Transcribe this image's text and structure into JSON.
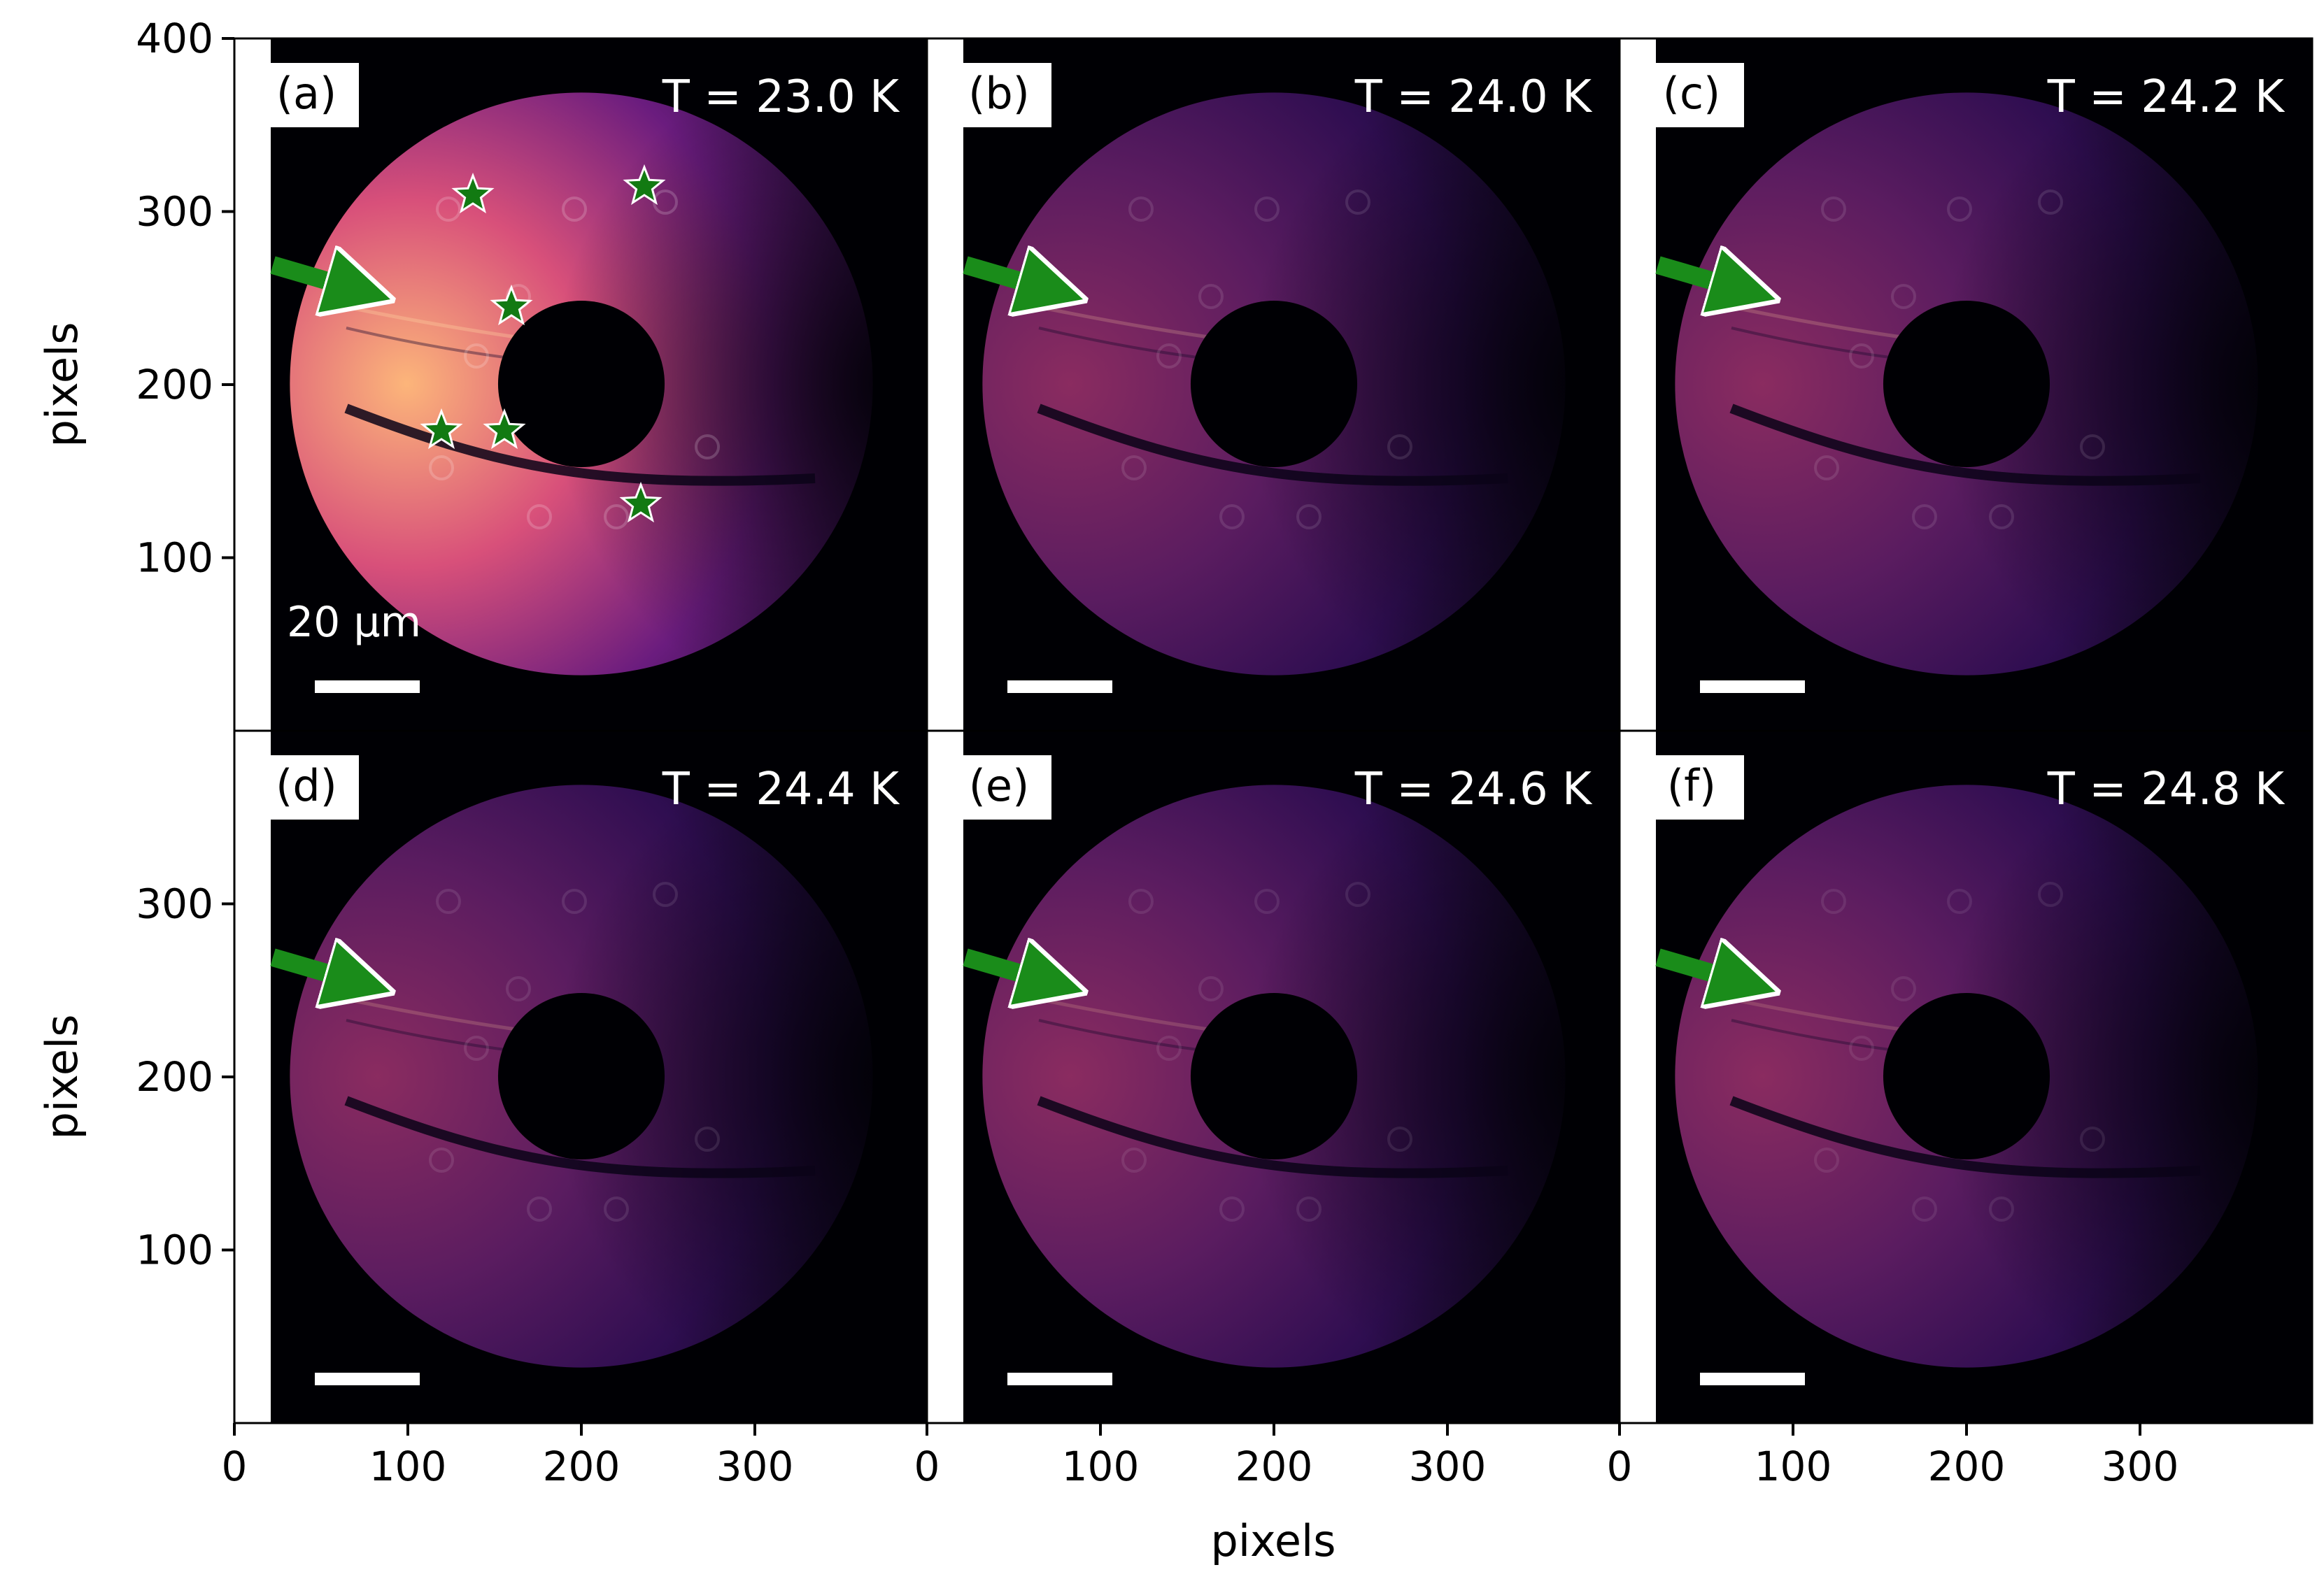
{
  "figure": {
    "axes": {
      "y_label": "pixels",
      "x_label": "pixels",
      "x_ticks": [
        "0",
        "100",
        "200",
        "300"
      ],
      "y_ticks_top": [
        "100",
        "200",
        "300",
        "400"
      ],
      "y_ticks_bottom": [
        "100",
        "200",
        "300"
      ]
    },
    "scale_bar_label": "20 μm",
    "panels": [
      {
        "label": "(a)",
        "temperature": "T = 23.0 K",
        "brightness": 1.0,
        "stars": true
      },
      {
        "label": "(b)",
        "temperature": "T = 24.0 K",
        "brightness": 0.62,
        "stars": false
      },
      {
        "label": "(c)",
        "temperature": "T = 24.2 K",
        "brightness": 0.6,
        "stars": false
      },
      {
        "label": "(d)",
        "temperature": "T = 24.4 K",
        "brightness": 0.56,
        "stars": false
      },
      {
        "label": "(e)",
        "temperature": "T = 24.6 K",
        "brightness": 0.5,
        "stars": false
      },
      {
        "label": "(f)",
        "temperature": "T = 24.8 K",
        "brightness": 0.48,
        "stars": false
      }
    ],
    "colors": {
      "background": "#000004",
      "ring_bright": "#fcb57a",
      "ring_mid": "#b33c7c",
      "ring_dark": "#3b0f70",
      "arrow": "#1a8c1a",
      "star": "#127a12",
      "scale_bar": "#ffffff"
    }
  }
}
